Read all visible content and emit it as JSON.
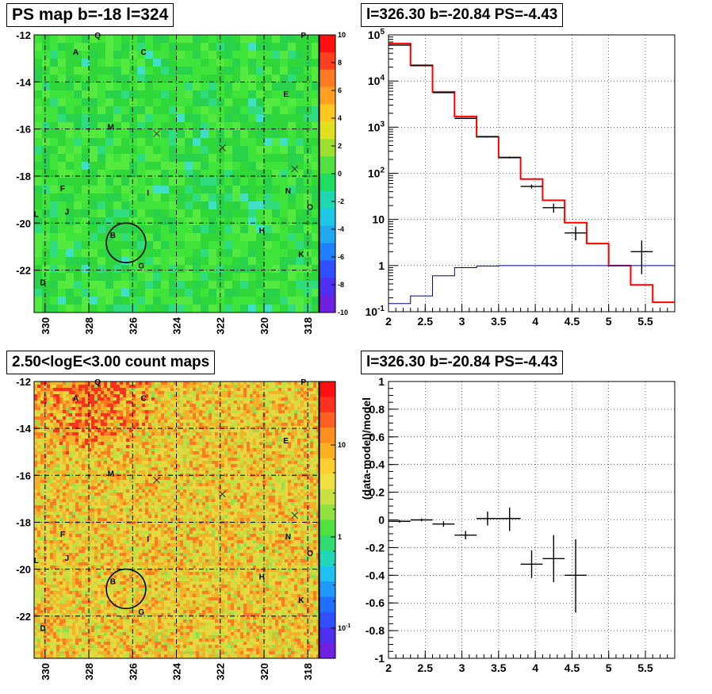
{
  "chart_data": [
    {
      "type": "heatmap",
      "title": "PS map b=-18 l=324",
      "x_ticks": [
        "330",
        "328",
        "326",
        "324",
        "322",
        "320",
        "318"
      ],
      "y_ticks": [
        "-12",
        "-14",
        "-16",
        "-18",
        "-20",
        "-22"
      ],
      "xlim": [
        330.5,
        317.5
      ],
      "ylim": [
        -23.8,
        -12.0
      ],
      "colorbar_ticks": [
        "10",
        "8",
        "6",
        "4",
        "2",
        "0",
        "-2",
        "-4",
        "-6",
        "-8",
        "-10"
      ],
      "colorbar_range": [
        -10,
        10
      ],
      "colors": {
        "background": "#33e033",
        "low": "#3b5cff",
        "high": "#ff2020"
      },
      "sources": [
        {
          "label": "A",
          "l": 328.6,
          "b": -12.7
        },
        {
          "label": "Q",
          "l": 327.6,
          "b": -12.0
        },
        {
          "label": "C",
          "l": 325.5,
          "b": -12.7
        },
        {
          "label": "P",
          "l": 318.2,
          "b": -12.0
        },
        {
          "label": "E",
          "l": 319.0,
          "b": -14.5
        },
        {
          "label": "M",
          "l": 327.0,
          "b": -15.9
        },
        {
          "label": "F",
          "l": 329.2,
          "b": -18.5
        },
        {
          "label": "I",
          "l": 325.3,
          "b": -18.7
        },
        {
          "label": "N",
          "l": 318.9,
          "b": -18.6
        },
        {
          "label": "L",
          "l": 330.4,
          "b": -19.6
        },
        {
          "label": "J",
          "l": 329.0,
          "b": -19.5
        },
        {
          "label": "O",
          "l": 317.9,
          "b": -19.3
        },
        {
          "label": "H",
          "l": 320.1,
          "b": -20.3
        },
        {
          "label": "B",
          "l": 326.9,
          "b": -20.5
        },
        {
          "label": "K",
          "l": 318.3,
          "b": -21.3
        },
        {
          "label": "G",
          "l": 325.6,
          "b": -21.8
        },
        {
          "label": "D",
          "l": 330.1,
          "b": -22.5
        }
      ],
      "cross_markers": [
        {
          "l": 324.9,
          "b": -16.2
        },
        {
          "l": 321.9,
          "b": -16.8
        },
        {
          "l": 318.6,
          "b": -17.7
        }
      ],
      "circle": {
        "l": 326.3,
        "b": -20.84,
        "radius_deg": 0.45
      }
    },
    {
      "type": "line",
      "title": "l=326.30 b=-20.84 PS=-4.43",
      "ylog": true,
      "xlim": [
        2.0,
        5.9
      ],
      "ylim": [
        0.1,
        100000
      ],
      "x_ticks": [
        "2",
        "2.5",
        "3",
        "3.5",
        "4",
        "4.5",
        "5",
        "5.5"
      ],
      "y_ticks": [
        "10^-1",
        "1",
        "10",
        "10^2",
        "10^3",
        "10^4",
        "10^5"
      ],
      "grid": true,
      "series": [
        {
          "color": "#ff0000",
          "bins": [
            2.0,
            2.3,
            2.6,
            2.9,
            3.2,
            3.5,
            3.8,
            4.1,
            4.4,
            4.7,
            5.0,
            5.3,
            5.6,
            5.9
          ],
          "values": [
            65000,
            22000,
            5800,
            1700,
            620,
            220,
            75,
            26,
            8.5,
            3.0,
            1.0,
            0.38,
            0.16
          ]
        },
        {
          "color": "#000080",
          "bins": [
            2.0,
            2.3,
            2.6,
            2.9,
            3.2,
            3.5,
            3.8,
            4.1,
            4.4,
            4.7,
            5.0,
            5.3,
            5.6,
            5.9
          ],
          "values": [
            0.15,
            0.22,
            0.6,
            0.9,
            0.98,
            1.0,
            1.0,
            1.0,
            1.0,
            1.0,
            1.0,
            1.0,
            1.0
          ]
        }
      ],
      "points": [
        {
          "x": 2.15,
          "y": 60000,
          "xerr": 0.15,
          "ylo": 59000,
          "yhi": 61000
        },
        {
          "x": 2.45,
          "y": 21500,
          "xerr": 0.15,
          "ylo": 21200,
          "yhi": 21800
        },
        {
          "x": 2.75,
          "y": 5600,
          "xerr": 0.15,
          "ylo": 5500,
          "yhi": 5700
        },
        {
          "x": 3.05,
          "y": 1550,
          "xerr": 0.15,
          "ylo": 1500,
          "yhi": 1600
        },
        {
          "x": 3.35,
          "y": 620,
          "xerr": 0.15,
          "ylo": 600,
          "yhi": 640
        },
        {
          "x": 3.65,
          "y": 220,
          "xerr": 0.15,
          "ylo": 210,
          "yhi": 230
        },
        {
          "x": 3.95,
          "y": 52,
          "xerr": 0.15,
          "ylo": 47,
          "yhi": 57
        },
        {
          "x": 4.25,
          "y": 18,
          "xerr": 0.15,
          "ylo": 14,
          "yhi": 22
        },
        {
          "x": 4.55,
          "y": 5.1,
          "xerr": 0.15,
          "ylo": 3.5,
          "yhi": 7
        },
        {
          "x": 5.45,
          "y": 2.0,
          "xerr": 0.15,
          "ylo": 0.65,
          "yhi": 3.5
        }
      ]
    },
    {
      "type": "heatmap",
      "title": "2.50<logE<3.00 count maps",
      "x_ticks": [
        "330",
        "328",
        "326",
        "324",
        "322",
        "320",
        "318"
      ],
      "y_ticks": [
        "-12",
        "-14",
        "-16",
        "-18",
        "-20",
        "-22"
      ],
      "xlim": [
        330.5,
        317.5
      ],
      "ylim": [
        -23.8,
        -12.0
      ],
      "colorbar_ticks": [
        "10",
        "1",
        "10^-1"
      ],
      "colorbar_log": true,
      "colors": {
        "background": "#f0c030",
        "low": "#2040ff",
        "high": "#ff2020"
      },
      "sources": "same-as-first",
      "circle": {
        "l": 326.3,
        "b": -20.84,
        "radius_deg": 0.45
      }
    },
    {
      "type": "scatter",
      "title": "l=326.30 b=-20.84 PS=-4.43",
      "ylabel": "(data-model)/model",
      "xlim": [
        2.0,
        5.9
      ],
      "ylim": [
        -1.0,
        1.0
      ],
      "x_ticks": [
        "2",
        "2.5",
        "3",
        "3.5",
        "4",
        "4.5",
        "5",
        "5.5"
      ],
      "y_ticks": [
        "1",
        "0.8",
        "0.6",
        "0.4",
        "0.2",
        "0",
        "-0.2",
        "-0.4",
        "-0.6",
        "-0.8",
        "-1"
      ],
      "grid": true,
      "points": [
        {
          "x": 2.15,
          "y": -0.01,
          "xerr": 0.15,
          "ylo": -0.02,
          "yhi": 0.0
        },
        {
          "x": 2.45,
          "y": 0.0,
          "xerr": 0.15,
          "ylo": -0.01,
          "yhi": 0.01
        },
        {
          "x": 2.75,
          "y": -0.03,
          "xerr": 0.15,
          "ylo": -0.05,
          "yhi": -0.01
        },
        {
          "x": 3.05,
          "y": -0.11,
          "xerr": 0.15,
          "ylo": -0.14,
          "yhi": -0.08
        },
        {
          "x": 3.35,
          "y": 0.01,
          "xerr": 0.15,
          "ylo": -0.04,
          "yhi": 0.06
        },
        {
          "x": 3.65,
          "y": 0.01,
          "xerr": 0.15,
          "ylo": -0.08,
          "yhi": 0.09
        },
        {
          "x": 3.95,
          "y": -0.32,
          "xerr": 0.15,
          "ylo": -0.42,
          "yhi": -0.22
        },
        {
          "x": 4.25,
          "y": -0.28,
          "xerr": 0.15,
          "ylo": -0.45,
          "yhi": -0.11
        },
        {
          "x": 4.55,
          "y": -0.4,
          "xerr": 0.15,
          "ylo": -0.67,
          "yhi": -0.14
        }
      ]
    }
  ]
}
